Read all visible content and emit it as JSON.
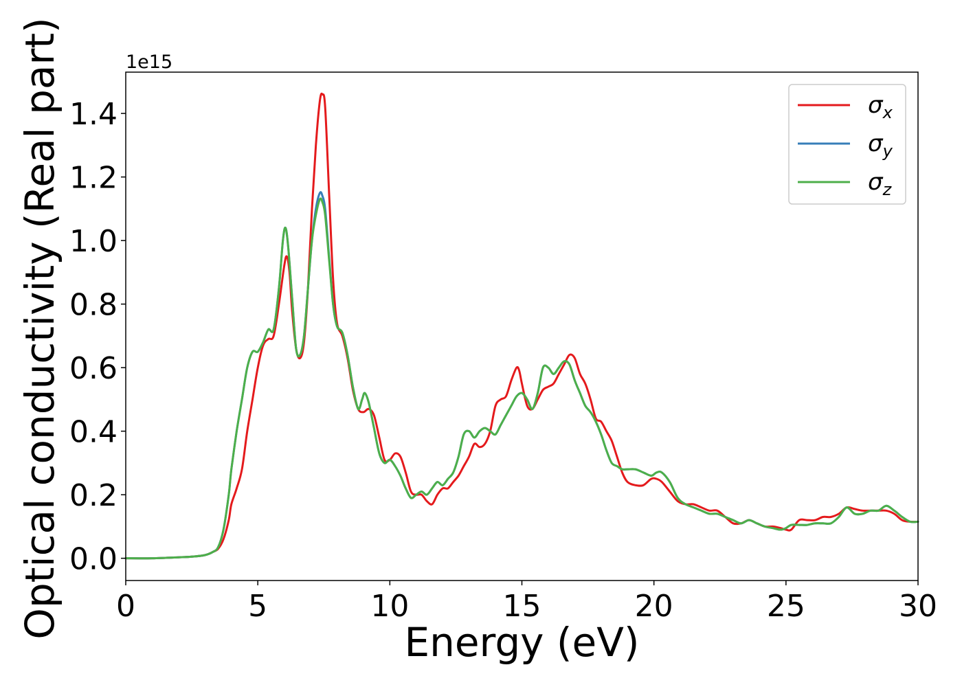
{
  "chart_data": {
    "type": "line",
    "xlabel": "Energy (eV)",
    "ylabel": "Optical conductivity (Real part)",
    "y_offset_label": "1e15",
    "y_scale": 1000000000000000.0,
    "xlim": [
      0,
      30
    ],
    "ylim": [
      -0.07,
      1.53
    ],
    "xticks": [
      0,
      5,
      10,
      15,
      20,
      25,
      30
    ],
    "xtick_labels": [
      "0",
      "5",
      "10",
      "15",
      "20",
      "25",
      "30"
    ],
    "yticks": [
      0.0,
      0.2,
      0.4,
      0.6,
      0.8,
      1.0,
      1.2,
      1.4
    ],
    "ytick_labels": [
      "0.0",
      "0.2",
      "0.4",
      "0.6",
      "0.8",
      "1.0",
      "1.2",
      "1.4"
    ],
    "grid": false,
    "legend_position": "top-right",
    "series": [
      {
        "name": "σx",
        "legend_base": "σ",
        "legend_sub": "x",
        "color": "#e41a1c",
        "x": [
          0,
          1,
          2,
          2.5,
          3,
          3.3,
          3.5,
          3.7,
          3.9,
          4.0,
          4.2,
          4.4,
          4.6,
          4.8,
          5.0,
          5.2,
          5.4,
          5.6,
          5.8,
          6.0,
          6.1,
          6.2,
          6.3,
          6.45,
          6.6,
          6.75,
          6.9,
          7.05,
          7.2,
          7.35,
          7.45,
          7.55,
          7.7,
          7.85,
          8.0,
          8.2,
          8.4,
          8.6,
          8.8,
          9.0,
          9.2,
          9.4,
          9.6,
          9.8,
          10.0,
          10.2,
          10.4,
          10.6,
          10.8,
          11.0,
          11.2,
          11.4,
          11.6,
          11.8,
          12.0,
          12.2,
          12.4,
          12.6,
          12.8,
          13.0,
          13.2,
          13.4,
          13.6,
          13.8,
          14.0,
          14.2,
          14.4,
          14.6,
          14.8,
          14.9,
          15.0,
          15.2,
          15.4,
          15.6,
          15.8,
          16.0,
          16.2,
          16.4,
          16.6,
          16.8,
          17.0,
          17.2,
          17.4,
          17.6,
          17.8,
          18.0,
          18.2,
          18.4,
          18.6,
          18.8,
          19.0,
          19.3,
          19.6,
          19.9,
          20.1,
          20.3,
          20.6,
          20.9,
          21.2,
          21.5,
          21.8,
          22.1,
          22.4,
          22.7,
          23.0,
          23.3,
          23.6,
          23.9,
          24.2,
          24.5,
          24.8,
          25.0,
          25.2,
          25.5,
          25.8,
          26.1,
          26.4,
          26.7,
          27.0,
          27.3,
          27.6,
          27.9,
          28.2,
          28.5,
          28.8,
          29.1,
          29.4,
          29.7,
          30.0
        ],
        "y": [
          0.0,
          0.0,
          0.003,
          0.005,
          0.01,
          0.02,
          0.03,
          0.06,
          0.12,
          0.17,
          0.22,
          0.28,
          0.4,
          0.5,
          0.6,
          0.67,
          0.69,
          0.7,
          0.8,
          0.92,
          0.95,
          0.9,
          0.78,
          0.66,
          0.63,
          0.68,
          0.85,
          1.1,
          1.3,
          1.44,
          1.46,
          1.42,
          1.15,
          0.88,
          0.74,
          0.7,
          0.63,
          0.53,
          0.47,
          0.46,
          0.47,
          0.45,
          0.38,
          0.31,
          0.31,
          0.33,
          0.32,
          0.27,
          0.21,
          0.2,
          0.2,
          0.18,
          0.17,
          0.2,
          0.22,
          0.22,
          0.24,
          0.26,
          0.29,
          0.32,
          0.36,
          0.35,
          0.36,
          0.4,
          0.48,
          0.5,
          0.51,
          0.56,
          0.6,
          0.59,
          0.55,
          0.48,
          0.47,
          0.5,
          0.53,
          0.54,
          0.55,
          0.58,
          0.61,
          0.64,
          0.63,
          0.58,
          0.55,
          0.5,
          0.44,
          0.43,
          0.4,
          0.37,
          0.32,
          0.27,
          0.24,
          0.23,
          0.23,
          0.25,
          0.25,
          0.24,
          0.21,
          0.18,
          0.17,
          0.17,
          0.16,
          0.15,
          0.15,
          0.13,
          0.11,
          0.11,
          0.12,
          0.11,
          0.1,
          0.1,
          0.095,
          0.09,
          0.09,
          0.12,
          0.12,
          0.12,
          0.13,
          0.13,
          0.14,
          0.16,
          0.155,
          0.15,
          0.15,
          0.15,
          0.15,
          0.14,
          0.12,
          0.115,
          0.115
        ]
      },
      {
        "name": "σy",
        "legend_base": "σ",
        "legend_sub": "y",
        "color": "#377eb8",
        "x": [
          0,
          1,
          2,
          2.5,
          3,
          3.3,
          3.5,
          3.7,
          3.9,
          4.0,
          4.2,
          4.4,
          4.6,
          4.8,
          5.0,
          5.2,
          5.4,
          5.6,
          5.8,
          5.95,
          6.05,
          6.15,
          6.3,
          6.45,
          6.6,
          6.75,
          6.9,
          7.05,
          7.2,
          7.35,
          7.45,
          7.55,
          7.7,
          7.85,
          8.0,
          8.2,
          8.4,
          8.6,
          8.8,
          8.95,
          9.05,
          9.2,
          9.4,
          9.6,
          9.8,
          10.0,
          10.2,
          10.4,
          10.6,
          10.8,
          11.0,
          11.2,
          11.4,
          11.6,
          11.8,
          12.0,
          12.2,
          12.4,
          12.6,
          12.8,
          13.0,
          13.2,
          13.4,
          13.6,
          13.8,
          14.0,
          14.2,
          14.4,
          14.6,
          14.8,
          15.0,
          15.2,
          15.4,
          15.6,
          15.8,
          16.0,
          16.2,
          16.4,
          16.6,
          16.8,
          17.0,
          17.2,
          17.4,
          17.6,
          17.8,
          18.0,
          18.2,
          18.4,
          18.6,
          18.8,
          19.0,
          19.3,
          19.6,
          19.9,
          20.1,
          20.3,
          20.6,
          20.9,
          21.2,
          21.5,
          21.8,
          22.1,
          22.4,
          22.7,
          23.0,
          23.3,
          23.6,
          23.9,
          24.2,
          24.5,
          24.8,
          25.0,
          25.2,
          25.5,
          25.8,
          26.1,
          26.4,
          26.7,
          27.0,
          27.3,
          27.6,
          27.9,
          28.2,
          28.5,
          28.8,
          29.1,
          29.4,
          29.7,
          30.0
        ],
        "y": [
          0.0,
          0.0,
          0.003,
          0.005,
          0.01,
          0.02,
          0.035,
          0.09,
          0.2,
          0.28,
          0.4,
          0.5,
          0.6,
          0.65,
          0.65,
          0.68,
          0.72,
          0.72,
          0.85,
          1.0,
          1.04,
          0.98,
          0.82,
          0.66,
          0.64,
          0.7,
          0.85,
          1.0,
          1.1,
          1.15,
          1.14,
          1.1,
          0.95,
          0.8,
          0.73,
          0.71,
          0.64,
          0.54,
          0.47,
          0.5,
          0.52,
          0.49,
          0.41,
          0.33,
          0.3,
          0.31,
          0.29,
          0.26,
          0.22,
          0.19,
          0.2,
          0.21,
          0.2,
          0.22,
          0.24,
          0.23,
          0.25,
          0.27,
          0.32,
          0.39,
          0.4,
          0.38,
          0.4,
          0.41,
          0.4,
          0.39,
          0.42,
          0.45,
          0.48,
          0.51,
          0.52,
          0.5,
          0.47,
          0.52,
          0.6,
          0.6,
          0.58,
          0.6,
          0.62,
          0.61,
          0.56,
          0.52,
          0.48,
          0.46,
          0.43,
          0.39,
          0.34,
          0.3,
          0.29,
          0.28,
          0.28,
          0.28,
          0.27,
          0.26,
          0.27,
          0.27,
          0.24,
          0.19,
          0.17,
          0.16,
          0.15,
          0.14,
          0.14,
          0.13,
          0.12,
          0.11,
          0.12,
          0.11,
          0.1,
          0.095,
          0.09,
          0.095,
          0.105,
          0.105,
          0.105,
          0.11,
          0.11,
          0.11,
          0.13,
          0.16,
          0.14,
          0.14,
          0.15,
          0.15,
          0.165,
          0.15,
          0.13,
          0.115,
          0.115
        ]
      },
      {
        "name": "σz",
        "legend_base": "σ",
        "legend_sub": "z",
        "color": "#4daf4a",
        "x": [
          0,
          1,
          2,
          2.5,
          3,
          3.3,
          3.5,
          3.7,
          3.9,
          4.0,
          4.2,
          4.4,
          4.6,
          4.8,
          5.0,
          5.2,
          5.4,
          5.6,
          5.8,
          5.95,
          6.05,
          6.15,
          6.3,
          6.45,
          6.6,
          6.75,
          6.9,
          7.05,
          7.2,
          7.35,
          7.45,
          7.55,
          7.7,
          7.85,
          8.0,
          8.2,
          8.4,
          8.6,
          8.8,
          8.95,
          9.05,
          9.2,
          9.4,
          9.6,
          9.8,
          10.0,
          10.2,
          10.4,
          10.6,
          10.8,
          11.0,
          11.2,
          11.4,
          11.6,
          11.8,
          12.0,
          12.2,
          12.4,
          12.6,
          12.8,
          13.0,
          13.2,
          13.4,
          13.6,
          13.8,
          14.0,
          14.2,
          14.4,
          14.6,
          14.8,
          15.0,
          15.2,
          15.4,
          15.6,
          15.8,
          16.0,
          16.2,
          16.4,
          16.6,
          16.8,
          17.0,
          17.2,
          17.4,
          17.6,
          17.8,
          18.0,
          18.2,
          18.4,
          18.6,
          18.8,
          19.0,
          19.3,
          19.6,
          19.9,
          20.1,
          20.3,
          20.6,
          20.9,
          21.2,
          21.5,
          21.8,
          22.1,
          22.4,
          22.7,
          23.0,
          23.3,
          23.6,
          23.9,
          24.2,
          24.5,
          24.8,
          25.0,
          25.2,
          25.5,
          25.8,
          26.1,
          26.4,
          26.7,
          27.0,
          27.3,
          27.6,
          27.9,
          28.2,
          28.5,
          28.8,
          29.1,
          29.4,
          29.7,
          30.0
        ],
        "y": [
          0.0,
          0.0,
          0.003,
          0.005,
          0.01,
          0.02,
          0.035,
          0.09,
          0.2,
          0.28,
          0.4,
          0.5,
          0.6,
          0.65,
          0.65,
          0.68,
          0.72,
          0.72,
          0.85,
          1.0,
          1.04,
          0.98,
          0.82,
          0.66,
          0.64,
          0.7,
          0.85,
          1.0,
          1.08,
          1.13,
          1.12,
          1.08,
          0.94,
          0.8,
          0.73,
          0.71,
          0.64,
          0.54,
          0.47,
          0.5,
          0.52,
          0.49,
          0.41,
          0.33,
          0.3,
          0.31,
          0.29,
          0.26,
          0.22,
          0.19,
          0.2,
          0.21,
          0.2,
          0.22,
          0.24,
          0.23,
          0.25,
          0.27,
          0.32,
          0.39,
          0.4,
          0.38,
          0.4,
          0.41,
          0.4,
          0.39,
          0.42,
          0.45,
          0.48,
          0.51,
          0.52,
          0.5,
          0.47,
          0.52,
          0.6,
          0.6,
          0.58,
          0.6,
          0.62,
          0.61,
          0.56,
          0.52,
          0.48,
          0.46,
          0.43,
          0.39,
          0.34,
          0.3,
          0.29,
          0.28,
          0.28,
          0.28,
          0.27,
          0.26,
          0.27,
          0.27,
          0.24,
          0.19,
          0.17,
          0.16,
          0.15,
          0.14,
          0.14,
          0.13,
          0.12,
          0.11,
          0.12,
          0.11,
          0.1,
          0.095,
          0.09,
          0.095,
          0.105,
          0.105,
          0.105,
          0.11,
          0.11,
          0.11,
          0.13,
          0.16,
          0.14,
          0.14,
          0.15,
          0.15,
          0.165,
          0.15,
          0.13,
          0.115,
          0.115
        ]
      }
    ]
  }
}
